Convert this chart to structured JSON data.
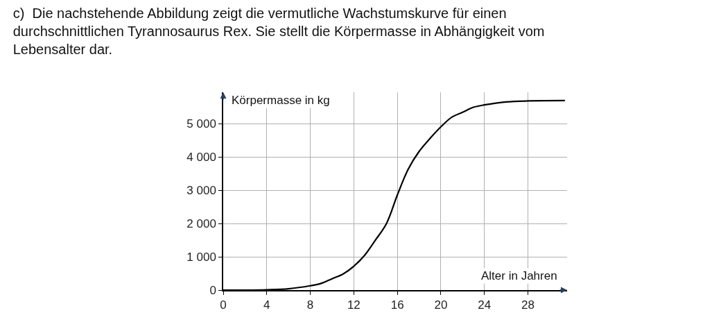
{
  "chart_data": {
    "type": "line",
    "title": "c)  Die nachstehende Abbildung zeigt die vermutliche Wachstumskurve für einen\ndurchschnittlichen Tyrannosaurus Rex. Sie stellt die Körpermasse in Abhängigkeit vom\nLebensalter dar.",
    "xlabel": "Alter in Jahren",
    "ylabel": "Körpermasse in kg",
    "x": [
      0,
      2,
      4,
      6,
      8,
      9,
      10,
      11,
      12,
      13,
      14,
      15,
      16,
      17,
      18,
      19,
      20,
      21,
      22,
      23,
      24,
      26,
      28,
      31.4
    ],
    "series": [
      {
        "color": "#000000",
        "values": [
          0,
          0,
          10,
          40,
          130,
          200,
          340,
          480,
          716,
          1050,
          1510,
          2000,
          2860,
          3640,
          4170,
          4560,
          4910,
          5200,
          5350,
          5500,
          5570,
          5660,
          5690,
          5700
        ]
      }
    ],
    "xlim": [
      0,
      31.6
    ],
    "ylim": [
      0,
      5950
    ],
    "xticks": [
      0,
      4,
      8,
      12,
      16,
      20,
      24,
      28
    ],
    "yticks": [
      0,
      {
        "value": 1000,
        "label": "1 000"
      },
      {
        "value": 2000,
        "label": "2 000"
      },
      {
        "value": 3000,
        "label": "3 000"
      },
      {
        "value": 4000,
        "label": "4 000"
      },
      {
        "value": 5000,
        "label": "5 000"
      }
    ],
    "grid": true,
    "marker": "none",
    "line_style": "solid"
  }
}
